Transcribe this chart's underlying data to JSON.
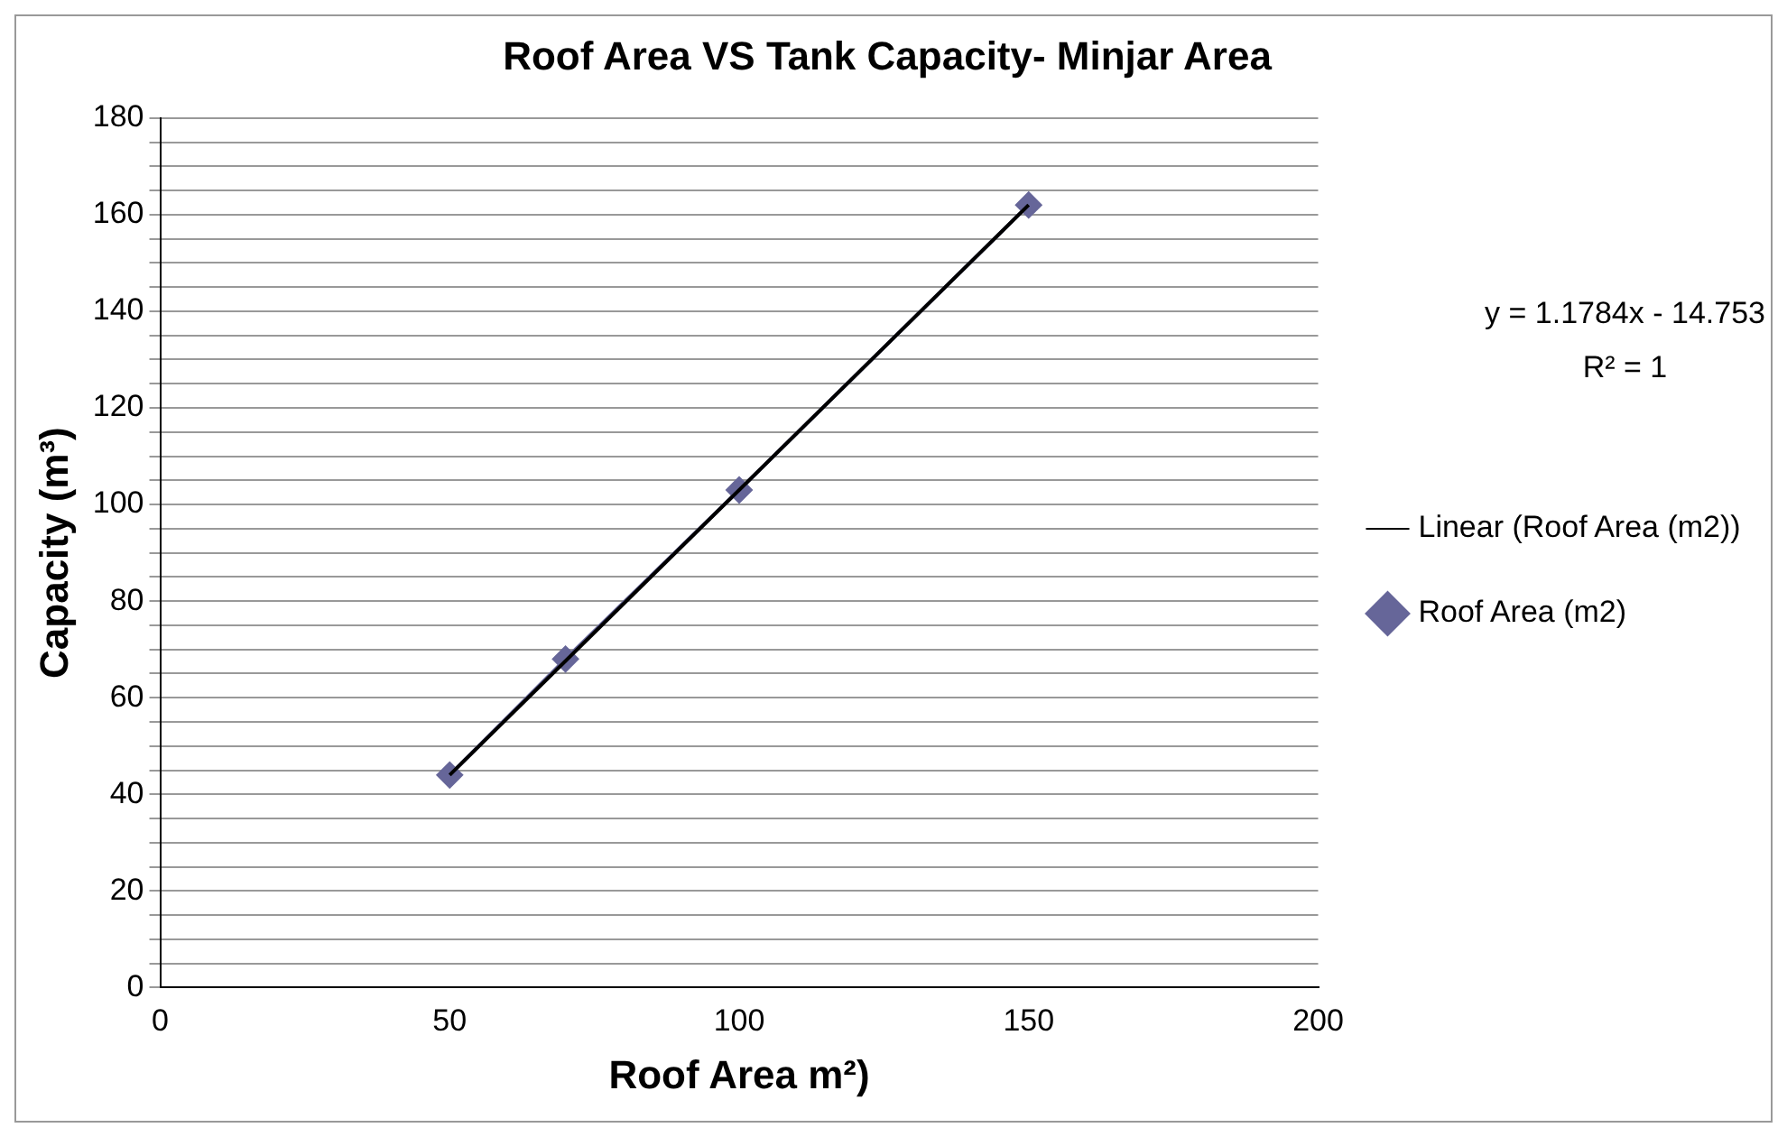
{
  "chart_data": {
    "type": "line",
    "title": "Roof Area VS Tank Capacity- Minjar Area",
    "xlabel": "Roof Area m²)",
    "ylabel": "Capacity (m³)",
    "xlim": [
      0,
      200
    ],
    "xticks": [
      0,
      50,
      100,
      150,
      200
    ],
    "ylim": [
      0,
      180
    ],
    "yticks": [
      0,
      {
        "value": 5,
        "label": null
      },
      {
        "value": 10,
        "label": null
      },
      {
        "value": 15,
        "label": null
      },
      20,
      {
        "value": 25,
        "label": null
      },
      {
        "value": 30,
        "label": null
      },
      {
        "value": 35,
        "label": null
      },
      40,
      {
        "value": 45,
        "label": null
      },
      {
        "value": 50,
        "label": null
      },
      {
        "value": 55,
        "label": null
      },
      60,
      {
        "value": 65,
        "label": null
      },
      {
        "value": 70,
        "label": null
      },
      {
        "value": 75,
        "label": null
      },
      80,
      {
        "value": 85,
        "label": null
      },
      {
        "value": 90,
        "label": null
      },
      {
        "value": 95,
        "label": null
      },
      100,
      {
        "value": 105,
        "label": null
      },
      {
        "value": 110,
        "label": null
      },
      {
        "value": 115,
        "label": null
      },
      120,
      {
        "value": 125,
        "label": null
      },
      {
        "value": 130,
        "label": null
      },
      {
        "value": 135,
        "label": null
      },
      140,
      {
        "value": 145,
        "label": null
      },
      {
        "value": 150,
        "label": null
      },
      {
        "value": 155,
        "label": null
      },
      160,
      {
        "value": 165,
        "label": null
      },
      {
        "value": 170,
        "label": null
      },
      {
        "value": 175,
        "label": null
      },
      180
    ],
    "grid": "y",
    "legend": "right",
    "annotations": [
      "y = 1.1784x - 14.753",
      "R² = 1"
    ],
    "series": [
      {
        "name": "Roof Area (m2)",
        "color": "#666699",
        "marker": "diamond",
        "x": [
          50,
          70,
          100,
          150
        ],
        "values": [
          44,
          68,
          103,
          162
        ]
      },
      {
        "name": "Linear (Roof Area (m2))",
        "color": "#000000",
        "marker": "none",
        "x": [
          50,
          150
        ],
        "values": [
          44,
          162
        ]
      }
    ]
  }
}
